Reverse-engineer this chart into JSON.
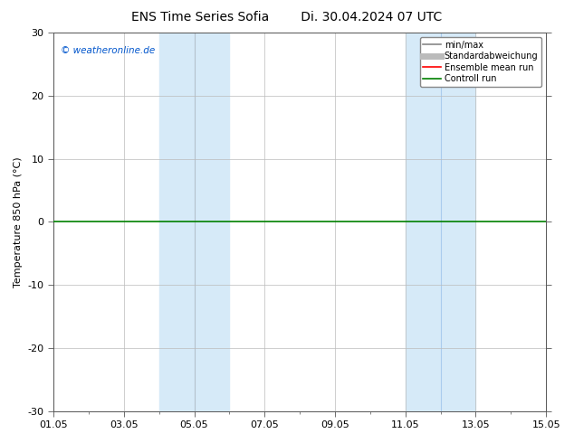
{
  "title_left": "ENS Time Series Sofia",
  "title_right": "Di. 30.04.2024 07 UTC",
  "ylabel": "Temperature 850 hPa (°C)",
  "ylim": [
    -30,
    30
  ],
  "yticks": [
    -30,
    -20,
    -10,
    0,
    10,
    20,
    30
  ],
  "xtick_labels": [
    "01.05",
    "03.05",
    "05.05",
    "07.05",
    "09.05",
    "11.05",
    "13.05",
    "15.05"
  ],
  "xtick_positions": [
    0,
    2,
    4,
    6,
    8,
    10,
    12,
    14
  ],
  "shaded_bands": [
    {
      "xstart": 3.0,
      "xend": 4.0,
      "color": "#d6eaf8"
    },
    {
      "xstart": 4.0,
      "xend": 5.0,
      "color": "#d6eaf8"
    },
    {
      "xstart": 10.0,
      "xend": 11.0,
      "color": "#d6eaf8"
    },
    {
      "xstart": 11.0,
      "xend": 12.0,
      "color": "#d6eaf8"
    }
  ],
  "band_dividers": [
    4.0,
    11.0
  ],
  "zero_line_color": "#008000",
  "zero_line_lw": 1.2,
  "grid_color": "#bbbbbb",
  "grid_lw": 0.5,
  "copyright_text": "© weatheronline.de",
  "copyright_color": "#0055cc",
  "legend_items": [
    {
      "label": "min/max",
      "color": "#888888",
      "lw": 1.2
    },
    {
      "label": "Standardabweichung",
      "color": "#bbbbbb",
      "lw": 5
    },
    {
      "label": "Ensemble mean run",
      "color": "#ff0000",
      "lw": 1.2
    },
    {
      "label": "Controll run",
      "color": "#008000",
      "lw": 1.2
    }
  ],
  "bg_color": "#ffffff",
  "border_color": "#555555",
  "title_fontsize": 10,
  "ylabel_fontsize": 8,
  "tick_fontsize": 8,
  "legend_fontsize": 7,
  "copyright_fontsize": 7.5
}
